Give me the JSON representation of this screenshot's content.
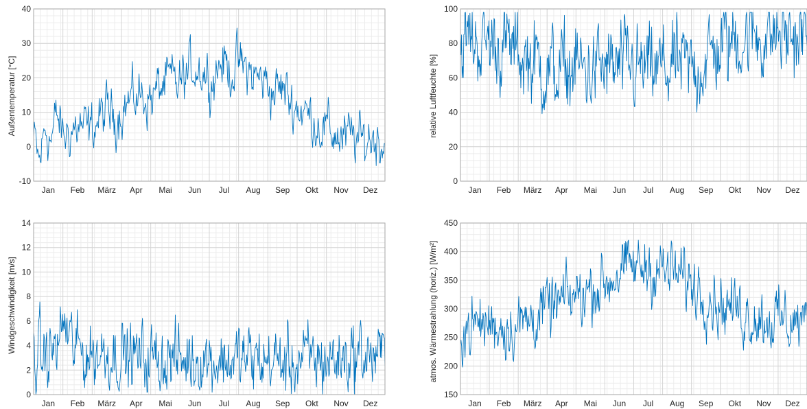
{
  "months": [
    "Jan",
    "Feb",
    "März",
    "Apr",
    "Mai",
    "Jun",
    "Jul",
    "Aug",
    "Sep",
    "Okt",
    "Nov",
    "Dez"
  ],
  "chart_data": [
    {
      "type": "line",
      "ylabel": "Außentemperatur [°C]",
      "ylim": [
        -10,
        40
      ],
      "yticks": [
        -10,
        0,
        10,
        20,
        30,
        40
      ],
      "x_unit": "month",
      "grid": "major and minor",
      "color": "#0072bd",
      "series": [
        {
          "values": [
            [
              0.0,
              2
            ],
            [
              0.2,
              -5
            ],
            [
              0.4,
              6
            ],
            [
              0.6,
              2
            ],
            [
              0.8,
              9
            ],
            [
              1.0,
              3
            ],
            [
              1.3,
              5
            ],
            [
              1.6,
              6
            ],
            [
              1.9,
              4
            ],
            [
              2.2,
              8
            ],
            [
              2.5,
              10
            ],
            [
              2.8,
              9
            ],
            [
              3.1,
              12
            ],
            [
              3.4,
              14
            ],
            [
              3.7,
              15
            ],
            [
              4.0,
              14
            ],
            [
              4.3,
              17
            ],
            [
              4.6,
              19
            ],
            [
              4.9,
              18
            ],
            [
              5.2,
              20
            ],
            [
              5.5,
              24
            ],
            [
              5.8,
              22
            ],
            [
              6.1,
              20
            ],
            [
              6.4,
              25
            ],
            [
              6.7,
              22
            ],
            [
              7.0,
              24
            ],
            [
              7.3,
              22
            ],
            [
              7.6,
              20
            ],
            [
              7.9,
              19
            ],
            [
              8.2,
              16
            ],
            [
              8.5,
              17
            ],
            [
              8.8,
              13
            ],
            [
              9.1,
              11
            ],
            [
              9.4,
              9
            ],
            [
              9.7,
              7
            ],
            [
              10.0,
              5
            ],
            [
              10.3,
              4
            ],
            [
              10.6,
              2
            ],
            [
              10.9,
              3
            ],
            [
              11.2,
              1
            ],
            [
              11.5,
              3
            ],
            [
              11.8,
              2
            ],
            [
              12.0,
              2
            ]
          ]
        }
      ]
    },
    {
      "type": "line",
      "ylabel": "relative Luftfeuchte [%]",
      "ylim": [
        0,
        100
      ],
      "yticks": [
        0,
        20,
        40,
        60,
        80,
        100
      ],
      "x_unit": "month",
      "grid": "major and minor",
      "color": "#0072bd",
      "series": [
        {
          "values": [
            [
              0.0,
              80
            ],
            [
              0.5,
              82
            ],
            [
              1.0,
              81
            ],
            [
              1.5,
              78
            ],
            [
              2.0,
              74
            ],
            [
              2.5,
              70
            ],
            [
              3.0,
              64
            ],
            [
              3.5,
              63
            ],
            [
              4.0,
              66
            ],
            [
              4.5,
              64
            ],
            [
              5.0,
              66
            ],
            [
              5.5,
              65
            ],
            [
              6.0,
              66
            ],
            [
              6.5,
              63
            ],
            [
              7.0,
              65
            ],
            [
              7.5,
              67
            ],
            [
              8.0,
              64
            ],
            [
              8.5,
              70
            ],
            [
              9.0,
              78
            ],
            [
              9.5,
              82
            ],
            [
              10.0,
              84
            ],
            [
              10.5,
              85
            ],
            [
              11.0,
              85
            ],
            [
              11.5,
              84
            ],
            [
              12.0,
              84
            ]
          ]
        }
      ]
    },
    {
      "type": "line",
      "ylabel": "Windgeschwindigkeit [m/s]",
      "ylim": [
        0,
        14
      ],
      "yticks": [
        0,
        2,
        4,
        6,
        8,
        10,
        12,
        14
      ],
      "x_unit": "month",
      "grid": "major and minor",
      "color": "#0072bd",
      "series": [
        {
          "values": [
            [
              0.0,
              3.2
            ],
            [
              0.5,
              3.0
            ],
            [
              0.9,
              4.5
            ],
            [
              1.0,
              6.0
            ],
            [
              1.3,
              4.0
            ],
            [
              1.6,
              3.5
            ],
            [
              2.0,
              3.2
            ],
            [
              2.5,
              3.5
            ],
            [
              3.0,
              3.2
            ],
            [
              3.5,
              3.0
            ],
            [
              4.0,
              2.9
            ],
            [
              4.5,
              3.0
            ],
            [
              5.0,
              2.8
            ],
            [
              5.5,
              3.0
            ],
            [
              6.0,
              2.9
            ],
            [
              6.5,
              2.8
            ],
            [
              7.0,
              2.9
            ],
            [
              7.5,
              2.8
            ],
            [
              8.0,
              2.7
            ],
            [
              8.5,
              2.6
            ],
            [
              9.0,
              2.7
            ],
            [
              9.5,
              2.9
            ],
            [
              10.0,
              2.8
            ],
            [
              10.5,
              3.0
            ],
            [
              11.0,
              3.4
            ],
            [
              11.5,
              3.2
            ],
            [
              12.0,
              3.0
            ]
          ]
        }
      ]
    },
    {
      "type": "line",
      "ylabel": "atmos. Wärmestrahlung (horiz.) [W/m²]",
      "ylim": [
        150,
        450
      ],
      "yticks": [
        150,
        200,
        250,
        300,
        350,
        400,
        450
      ],
      "x_unit": "month",
      "grid": "major and minor",
      "color": "#0072bd",
      "series": [
        {
          "values": [
            [
              0.0,
              265
            ],
            [
              0.5,
              270
            ],
            [
              1.0,
              275
            ],
            [
              1.5,
              270
            ],
            [
              2.0,
              272
            ],
            [
              2.5,
              285
            ],
            [
              3.0,
              300
            ],
            [
              3.5,
              310
            ],
            [
              4.0,
              322
            ],
            [
              4.5,
              335
            ],
            [
              5.0,
              345
            ],
            [
              5.5,
              365
            ],
            [
              6.0,
              370
            ],
            [
              6.5,
              375
            ],
            [
              7.0,
              365
            ],
            [
              7.5,
              360
            ],
            [
              8.0,
              345
            ],
            [
              8.5,
              330
            ],
            [
              9.0,
              310
            ],
            [
              9.5,
              300
            ],
            [
              10.0,
              290
            ],
            [
              10.5,
              285
            ],
            [
              11.0,
              280
            ],
            [
              11.5,
              278
            ],
            [
              12.0,
              275
            ]
          ]
        }
      ]
    }
  ]
}
